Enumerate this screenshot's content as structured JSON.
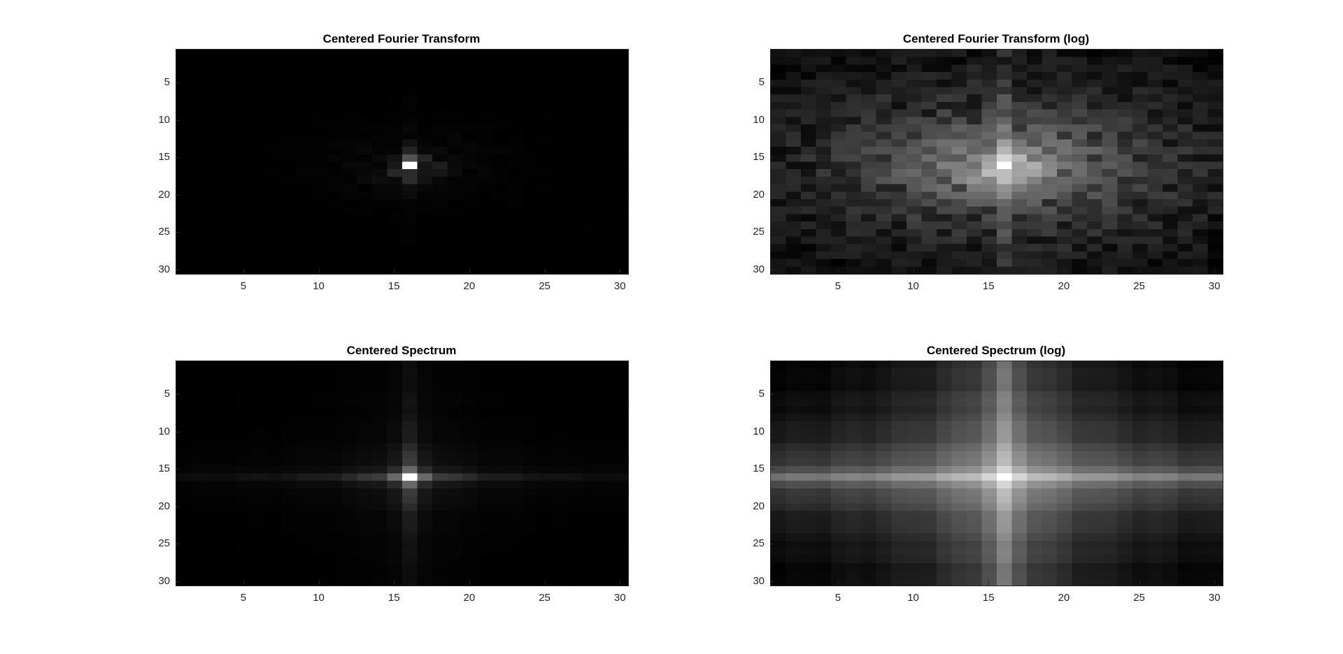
{
  "chart_data": [
    {
      "type": "heatmap",
      "title": "Centered Fourier Transform",
      "variant": "transform",
      "scale": "linear",
      "colormap": "gray",
      "grid_size": 30,
      "xlim": [
        0.5,
        30.5
      ],
      "ylim": [
        0.5,
        30.5
      ],
      "y_reversed": true,
      "xticks": [
        5,
        10,
        15,
        20,
        25,
        30
      ],
      "yticks": [
        5,
        10,
        15,
        20,
        25,
        30
      ],
      "peak": [
        16,
        16
      ]
    },
    {
      "type": "heatmap",
      "title": "Centered Fourier Transform (log)",
      "variant": "transform",
      "scale": "log",
      "colormap": "gray",
      "grid_size": 30,
      "xlim": [
        0.5,
        30.5
      ],
      "ylim": [
        0.5,
        30.5
      ],
      "y_reversed": true,
      "xticks": [
        5,
        10,
        15,
        20,
        25,
        30
      ],
      "yticks": [
        5,
        10,
        15,
        20,
        25,
        30
      ],
      "peak": [
        16,
        16
      ]
    },
    {
      "type": "heatmap",
      "title": "Centered Spectrum",
      "variant": "spectrum",
      "scale": "linear",
      "colormap": "gray",
      "grid_size": 30,
      "xlim": [
        0.5,
        30.5
      ],
      "ylim": [
        0.5,
        30.5
      ],
      "y_reversed": true,
      "xticks": [
        5,
        10,
        15,
        20,
        25,
        30
      ],
      "yticks": [
        5,
        10,
        15,
        20,
        25,
        30
      ],
      "peak": [
        16,
        16
      ]
    },
    {
      "type": "heatmap",
      "title": "Centered Spectrum (log)",
      "variant": "spectrum",
      "scale": "log",
      "colormap": "gray",
      "grid_size": 30,
      "xlim": [
        0.5,
        30.5
      ],
      "ylim": [
        0.5,
        30.5
      ],
      "y_reversed": true,
      "xticks": [
        5,
        10,
        15,
        20,
        25,
        30
      ],
      "yticks": [
        5,
        10,
        15,
        20,
        25,
        30
      ],
      "peak": [
        16,
        16
      ]
    }
  ]
}
